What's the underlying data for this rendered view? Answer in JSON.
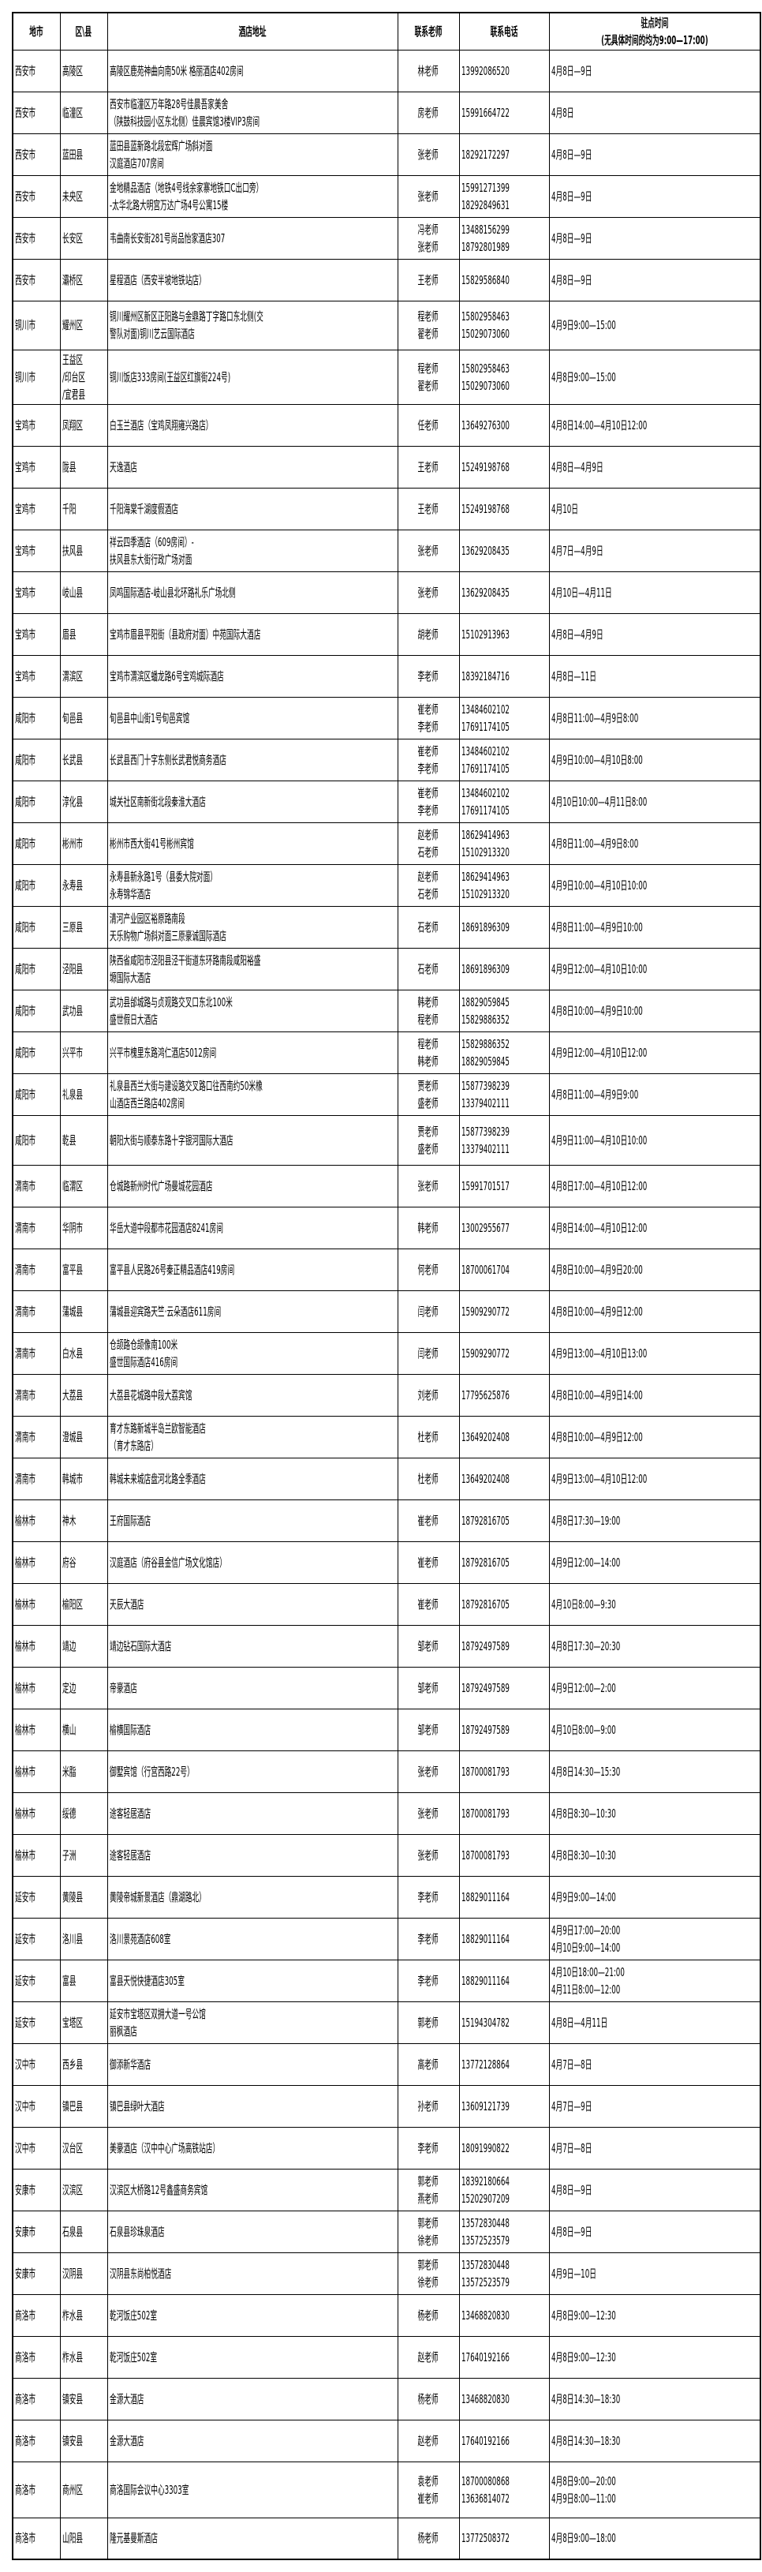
{
  "headers": [
    "地市",
    "区\\县",
    "酒店地址",
    "联系老师",
    "联系电话",
    "驻点时间\n(无具体时间的均为9:00—17:00)"
  ],
  "rows": [
    {
      "city": "西安市",
      "district": "高陵区",
      "address": "高陵区鹿苑神曲向南50米 格丽酒店402房间",
      "teachers": "林老师",
      "phones": "13992086520",
      "time": "4月8日—9日"
    },
    {
      "city": "西安市",
      "district": "临潼区",
      "address": "西安市临潼区万年路28号佳晨吾家美舍\n（陕鼓科技园小区东北侧）佳晨宾馆3楼VIP3房间",
      "teachers": "房老师",
      "phones": "15991664722",
      "time": "4月8日"
    },
    {
      "city": "西安市",
      "district": "蓝田县",
      "address": "蓝田县蓝新路北段宏辉广场斜对面\n汉庭酒店707房间",
      "teachers": "张老师",
      "phones": "18292172297",
      "time": "4月8日—9日"
    },
    {
      "city": "西安市",
      "district": "未央区",
      "address": "金地精品酒店（地铁4号线余家寨地铁口C出口旁）\n-太华北路大明宫万达广场4号公寓15楼",
      "teachers": "张老师",
      "phones": "15991271399\n18292849631",
      "time": "4月8日—9日"
    },
    {
      "city": "西安市",
      "district": "长安区",
      "address": "韦曲南长安街281号尚品怡家酒店307",
      "teachers": "冯老师\n张老师",
      "phones": "13488156299\n18792801989",
      "time": "4月8日—9日"
    },
    {
      "city": "西安市",
      "district": "灞桥区",
      "address": "星程酒店（西安半坡地铁站店）",
      "teachers": "王老师",
      "phones": "15829586840",
      "time": "4月8日—9日"
    },
    {
      "city": "铜川市",
      "district": "耀州区",
      "address": "铜川耀州区新区正阳路与金鼎路丁字路口东北侧(交\n警队对面)铜川艺云国际酒店",
      "teachers": "程老师\n翟老师",
      "phones": "15802958463\n15029073060",
      "time": "4月9日9:00—15:00",
      "h": 117
    },
    {
      "city": "铜川市",
      "district": "王益区\n/印台区\n/宜君县",
      "address": "铜川饭店333房间(王益区红旗街224号)",
      "teachers": "程老师\n翟老师",
      "phones": "15802958463\n15029073060",
      "time": "4月8日9:00—15:00",
      "h": 130
    },
    {
      "city": "宝鸡市",
      "district": "凤翔区",
      "address": "白玉兰酒店（宝鸡凤翔雍兴路店）",
      "teachers": "任老师",
      "phones": "13649276300",
      "time": "4月8日14:00—4月10日12:00"
    },
    {
      "city": "宝鸡市",
      "district": "陇县",
      "address": "天逸酒店",
      "teachers": "王老师",
      "phones": "15249198768",
      "time": "4月8日—4月9日"
    },
    {
      "city": "宝鸡市",
      "district": "千阳",
      "address": "千阳海棠千湖度假酒店",
      "teachers": "王老师",
      "phones": "15249198768",
      "time": "4月10日"
    },
    {
      "city": "宝鸡市",
      "district": "扶风县",
      "address": "祥云四季酒店（609房间）-\n扶风县东大街行政广场对面",
      "teachers": "张老师",
      "phones": "13629208435",
      "time": "4月7日—4月9日"
    },
    {
      "city": "宝鸡市",
      "district": "岐山县",
      "address": "凤鸣国际酒店-岐山县北环路礼乐广场北侧",
      "teachers": "张老师",
      "phones": "13629208435",
      "time": "4月10日—4月11日"
    },
    {
      "city": "宝鸡市",
      "district": "眉县",
      "address": "宝鸡市眉县平阳街（县政府对面）中苑国际大酒店",
      "teachers": "胡老师",
      "phones": "15102913963",
      "time": "4月8日—4月9日"
    },
    {
      "city": "宝鸡市",
      "district": "渭滨区",
      "address": "宝鸡市渭滨区蟠龙路6号宝鸡城际酒店",
      "teachers": "李老师",
      "phones": "18392184716",
      "time": "4月8日—11日"
    },
    {
      "city": "咸阳市",
      "district": "旬邑县",
      "address": "旬邑县中山街1号旬邑宾馆",
      "teachers": "崔老师\n李老师",
      "phones": "13484602102\n17691174105",
      "time": "4月8日11:00—4月9日8:00"
    },
    {
      "city": "咸阳市",
      "district": "长武县",
      "address": "长武县西门十字东侧长武君悦商务酒店",
      "teachers": "崔老师\n李老师",
      "phones": "13484602102\n17691174105",
      "time": "4月9日10:00—4月10日8:00"
    },
    {
      "city": "咸阳市",
      "district": "淳化县",
      "address": "城关社区南新街北段秦淮大酒店",
      "teachers": "崔老师\n李老师",
      "phones": "13484602102\n17691174105",
      "time": "4月10日10:00—4月11日8:00"
    },
    {
      "city": "咸阳市",
      "district": "彬州市",
      "address": "彬州市西大街41号彬州宾馆",
      "teachers": "赵老师\n石老师",
      "phones": "18629414963\n15102913320",
      "time": "4月8日11:00—4月9日8:00"
    },
    {
      "city": "咸阳市",
      "district": "永寿县",
      "address": "永寿县新永路1号（县委大院对面）\n永寿锦华酒店",
      "teachers": "赵老师\n石老师",
      "phones": "18629414963\n15102913320",
      "time": "4月9日10:00—4月10日10:00"
    },
    {
      "city": "咸阳市",
      "district": "三原县",
      "address": "清河产业园区裕原路南段\n天乐购物广场斜对面三原豪诚国际酒店",
      "teachers": "石老师",
      "phones": "18691896309",
      "time": "4月8日11:00—4月9日10:00"
    },
    {
      "city": "咸阳市",
      "district": "泾阳县",
      "address": "陕西省咸阳市泾阳县泾干街道东环路南段咸阳裕盛\n塬国际大酒店",
      "teachers": "石老师",
      "phones": "18691896309",
      "time": "4月9日12:00—4月10日10:00"
    },
    {
      "city": "咸阳市",
      "district": "武功县",
      "address": "武功县邰城路与贞观路交叉口东北100米\n盛世假日大酒店",
      "teachers": "韩老师\n程老师",
      "phones": "18829059845\n15829886352",
      "time": "4月8日10:00—4月9日10:00"
    },
    {
      "city": "咸阳市",
      "district": "兴平市",
      "address": "兴平市槐里东路鸿仁酒店5012房间",
      "teachers": "程老师\n韩老师",
      "phones": "15829886352\n18829059845",
      "time": "4月9日12:00—4月10日12:00"
    },
    {
      "city": "咸阳市",
      "district": "礼泉县",
      "address": "礼泉县西兰大街与建设路交叉路口往西南约50米橡\n山酒店西兰路店402房间",
      "teachers": "贾老师\n盛老师",
      "phones": "15877398239\n13379402111",
      "time": "4月8日11:00—4月9日9:00"
    },
    {
      "city": "咸阳市",
      "district": "乾县",
      "address": "朝阳大街与顺泰东路十字银河国际大酒店",
      "teachers": "贾老师\n盛老师",
      "phones": "15877398239\n13379402111",
      "time": "4月9日11:00—4月10日10:00",
      "h": 118
    },
    {
      "city": "渭南市",
      "district": "临渭区",
      "address": "仓城路新州时代广场曼城花园酒店",
      "teachers": "张老师",
      "phones": "15991701517",
      "time": "4月8日17:00—4月10日12:00"
    },
    {
      "city": "渭南市",
      "district": "华阴市",
      "address": "华岳大道中段都市花园酒店8241房间",
      "teachers": "韩老师",
      "phones": "13002955677",
      "time": "4月8日14:00—4月10日12:00"
    },
    {
      "city": "渭南市",
      "district": "富平县",
      "address": "富平县人民路26号秦正精品酒店419房间",
      "teachers": "何老师",
      "phones": "18700061704",
      "time": "4月8日10:00—4月9日20:00"
    },
    {
      "city": "渭南市",
      "district": "蒲城县",
      "address": "蒲城县迎宾路天竺·云朵酒店611房间",
      "teachers": "闫老师",
      "phones": "15909290772",
      "time": "4月8日10:00—4月9日12:00"
    },
    {
      "city": "渭南市",
      "district": "白水县",
      "address": "仓颉路仓颉像南100米\n盛世国际酒店416房间",
      "teachers": "闫老师",
      "phones": "15909290772",
      "time": "4月9日13:00—4月10日13:00"
    },
    {
      "city": "渭南市",
      "district": "大荔县",
      "address": "大荔县花城路中段大荔宾馆",
      "teachers": "刘老师",
      "phones": "17795625876",
      "time": "4月8日10:00—4月9日14:00"
    },
    {
      "city": "渭南市",
      "district": "澄城县",
      "address": "育才东路新城半岛兰欧智能酒店\n（育才东路店）",
      "teachers": "杜老师",
      "phones": "13649202408",
      "time": "4月8日10:00—4月9日12:00"
    },
    {
      "city": "渭南市",
      "district": "韩城市",
      "address": "韩城未来城店盘河北路全季酒店",
      "teachers": "杜老师",
      "phones": "13649202408",
      "time": "4月9日13:00—4月10日12:00"
    },
    {
      "city": "榆林市",
      "district": "神木",
      "address": "王府国际酒店",
      "teachers": "崔老师",
      "phones": "18792816705",
      "time": "4月8日17:30—19:00"
    },
    {
      "city": "榆林市",
      "district": "府谷",
      "address": "汉庭酒店（府谷县金信广场文化馆店）",
      "teachers": "崔老师",
      "phones": "18792816705",
      "time": "4月9日12:00—14:00"
    },
    {
      "city": "榆林市",
      "district": "榆阳区",
      "address": "天辰大酒店",
      "teachers": "崔老师",
      "phones": "18792816705",
      "time": "4月10日8:00—9:30"
    },
    {
      "city": "榆林市",
      "district": "靖边",
      "address": "靖边钻石国际大酒店",
      "teachers": "邹老师",
      "phones": "18792497589",
      "time": "4月8日17:30—20:30"
    },
    {
      "city": "榆林市",
      "district": "定边",
      "address": "帝豪酒店",
      "teachers": "邹老师",
      "phones": "18792497589",
      "time": "4月9日12:00—2:00"
    },
    {
      "city": "榆林市",
      "district": "横山",
      "address": "榆横国际酒店",
      "teachers": "邹老师",
      "phones": "18792497589",
      "time": "4月10日8:00—9:00"
    },
    {
      "city": "榆林市",
      "district": "米脂",
      "address": "御墅宾馆（行宫西路22号）",
      "teachers": "张老师",
      "phones": "18700081793",
      "time": "4月8日14:30—15:30"
    },
    {
      "city": "榆林市",
      "district": "绥德",
      "address": "途客轻居酒店",
      "teachers": "张老师",
      "phones": "18700081793",
      "time": "4月8日8:30—10:30"
    },
    {
      "city": "榆林市",
      "district": "子洲",
      "address": "途客轻居酒店",
      "teachers": "张老师",
      "phones": "18700081793",
      "time": "4月8日8:30—10:30"
    },
    {
      "city": "延安市",
      "district": "黄陵县",
      "address": "黄陵帝城新景酒店（鼎湖路北）",
      "teachers": "李老师",
      "phones": "18829011164",
      "time": "4月9日9:00—14:00"
    },
    {
      "city": "延安市",
      "district": "洛川县",
      "address": "洛川景苑酒店608室",
      "teachers": "李老师",
      "phones": "18829011164",
      "time": "4月9日17:00—20:00\n4月10日9:00—14:00"
    },
    {
      "city": "延安市",
      "district": "富县",
      "address": "富县天悦快捷酒店305室",
      "teachers": "李老师",
      "phones": "18829011164",
      "time": "4月10日18:00—21:00\n4月11日8:00—12:00"
    },
    {
      "city": "延安市",
      "district": "宝塔区",
      "address": "延安市宝塔区双拥大道一号公馆\n丽枫酒店",
      "teachers": "郭老师",
      "phones": "15194304782",
      "time": "4月8日—4月11日"
    },
    {
      "city": "汉中市",
      "district": "西乡县",
      "address": "御添新华酒店",
      "teachers": "高老师",
      "phones": "13772128864",
      "time": "4月7日—8日"
    },
    {
      "city": "汉中市",
      "district": "镇巴县",
      "address": "镇巴县绿叶大酒店",
      "teachers": "孙老师",
      "phones": "13609121739",
      "time": "4月7日—9日"
    },
    {
      "city": "汉中市",
      "district": "汉台区",
      "address": "美豪酒店（汉中中心广场高铁站店）",
      "teachers": "李老师",
      "phones": "18091990822",
      "time": "4月7日—8日"
    },
    {
      "city": "安康市",
      "district": "汉滨区",
      "address": "汉滨区大桥路12号鑫盛商务宾馆",
      "teachers": "郭老师\n燕老师",
      "phones": "18392180664\n15202907209",
      "time": "4月8日—9日"
    },
    {
      "city": "安康市",
      "district": "石泉县",
      "address": "石泉县珍珠泉酒店",
      "teachers": "郭老师\n徐老师",
      "phones": "13572830448\n13572523579",
      "time": "4月8日—9日"
    },
    {
      "city": "安康市",
      "district": "汉阴县",
      "address": "汉阴县东尚柏悦酒店",
      "teachers": "郭老师\n徐老师",
      "phones": "13572830448\n13572523579",
      "time": "4月9日—10日"
    },
    {
      "city": "商洛市",
      "district": "柞水县",
      "address": "乾河饭庄502室",
      "teachers": "杨老师",
      "phones": "13468820830",
      "time": "4月8日9:00—12:30"
    },
    {
      "city": "商洛市",
      "district": "柞水县",
      "address": "乾河饭庄502室",
      "teachers": "赵老师",
      "phones": "17640192166",
      "time": "4月8日9:00—12:30"
    },
    {
      "city": "商洛市",
      "district": "镇安县",
      "address": "金源大酒店",
      "teachers": "杨老师",
      "phones": "13468820830",
      "time": "4月8日14:30—18:30"
    },
    {
      "city": "商洛市",
      "district": "镇安县",
      "address": "金源大酒店",
      "teachers": "赵老师",
      "phones": "17640192166",
      "time": "4月8日14:30—18:30"
    },
    {
      "city": "商洛市",
      "district": "商州区",
      "address": "商洛国际会议中心3303室",
      "teachers": "袁老师\n崔老师",
      "phones": "18700080868\n13636814072",
      "time": "4月8日9:00—20:00\n4月9日8:00—11:00",
      "h": 133
    },
    {
      "city": "商洛市",
      "district": "山阳县",
      "address": "隆元基曼斯酒店",
      "teachers": "杨老师",
      "phones": "13772508372",
      "time": "4月8日9:00—18:00"
    }
  ]
}
